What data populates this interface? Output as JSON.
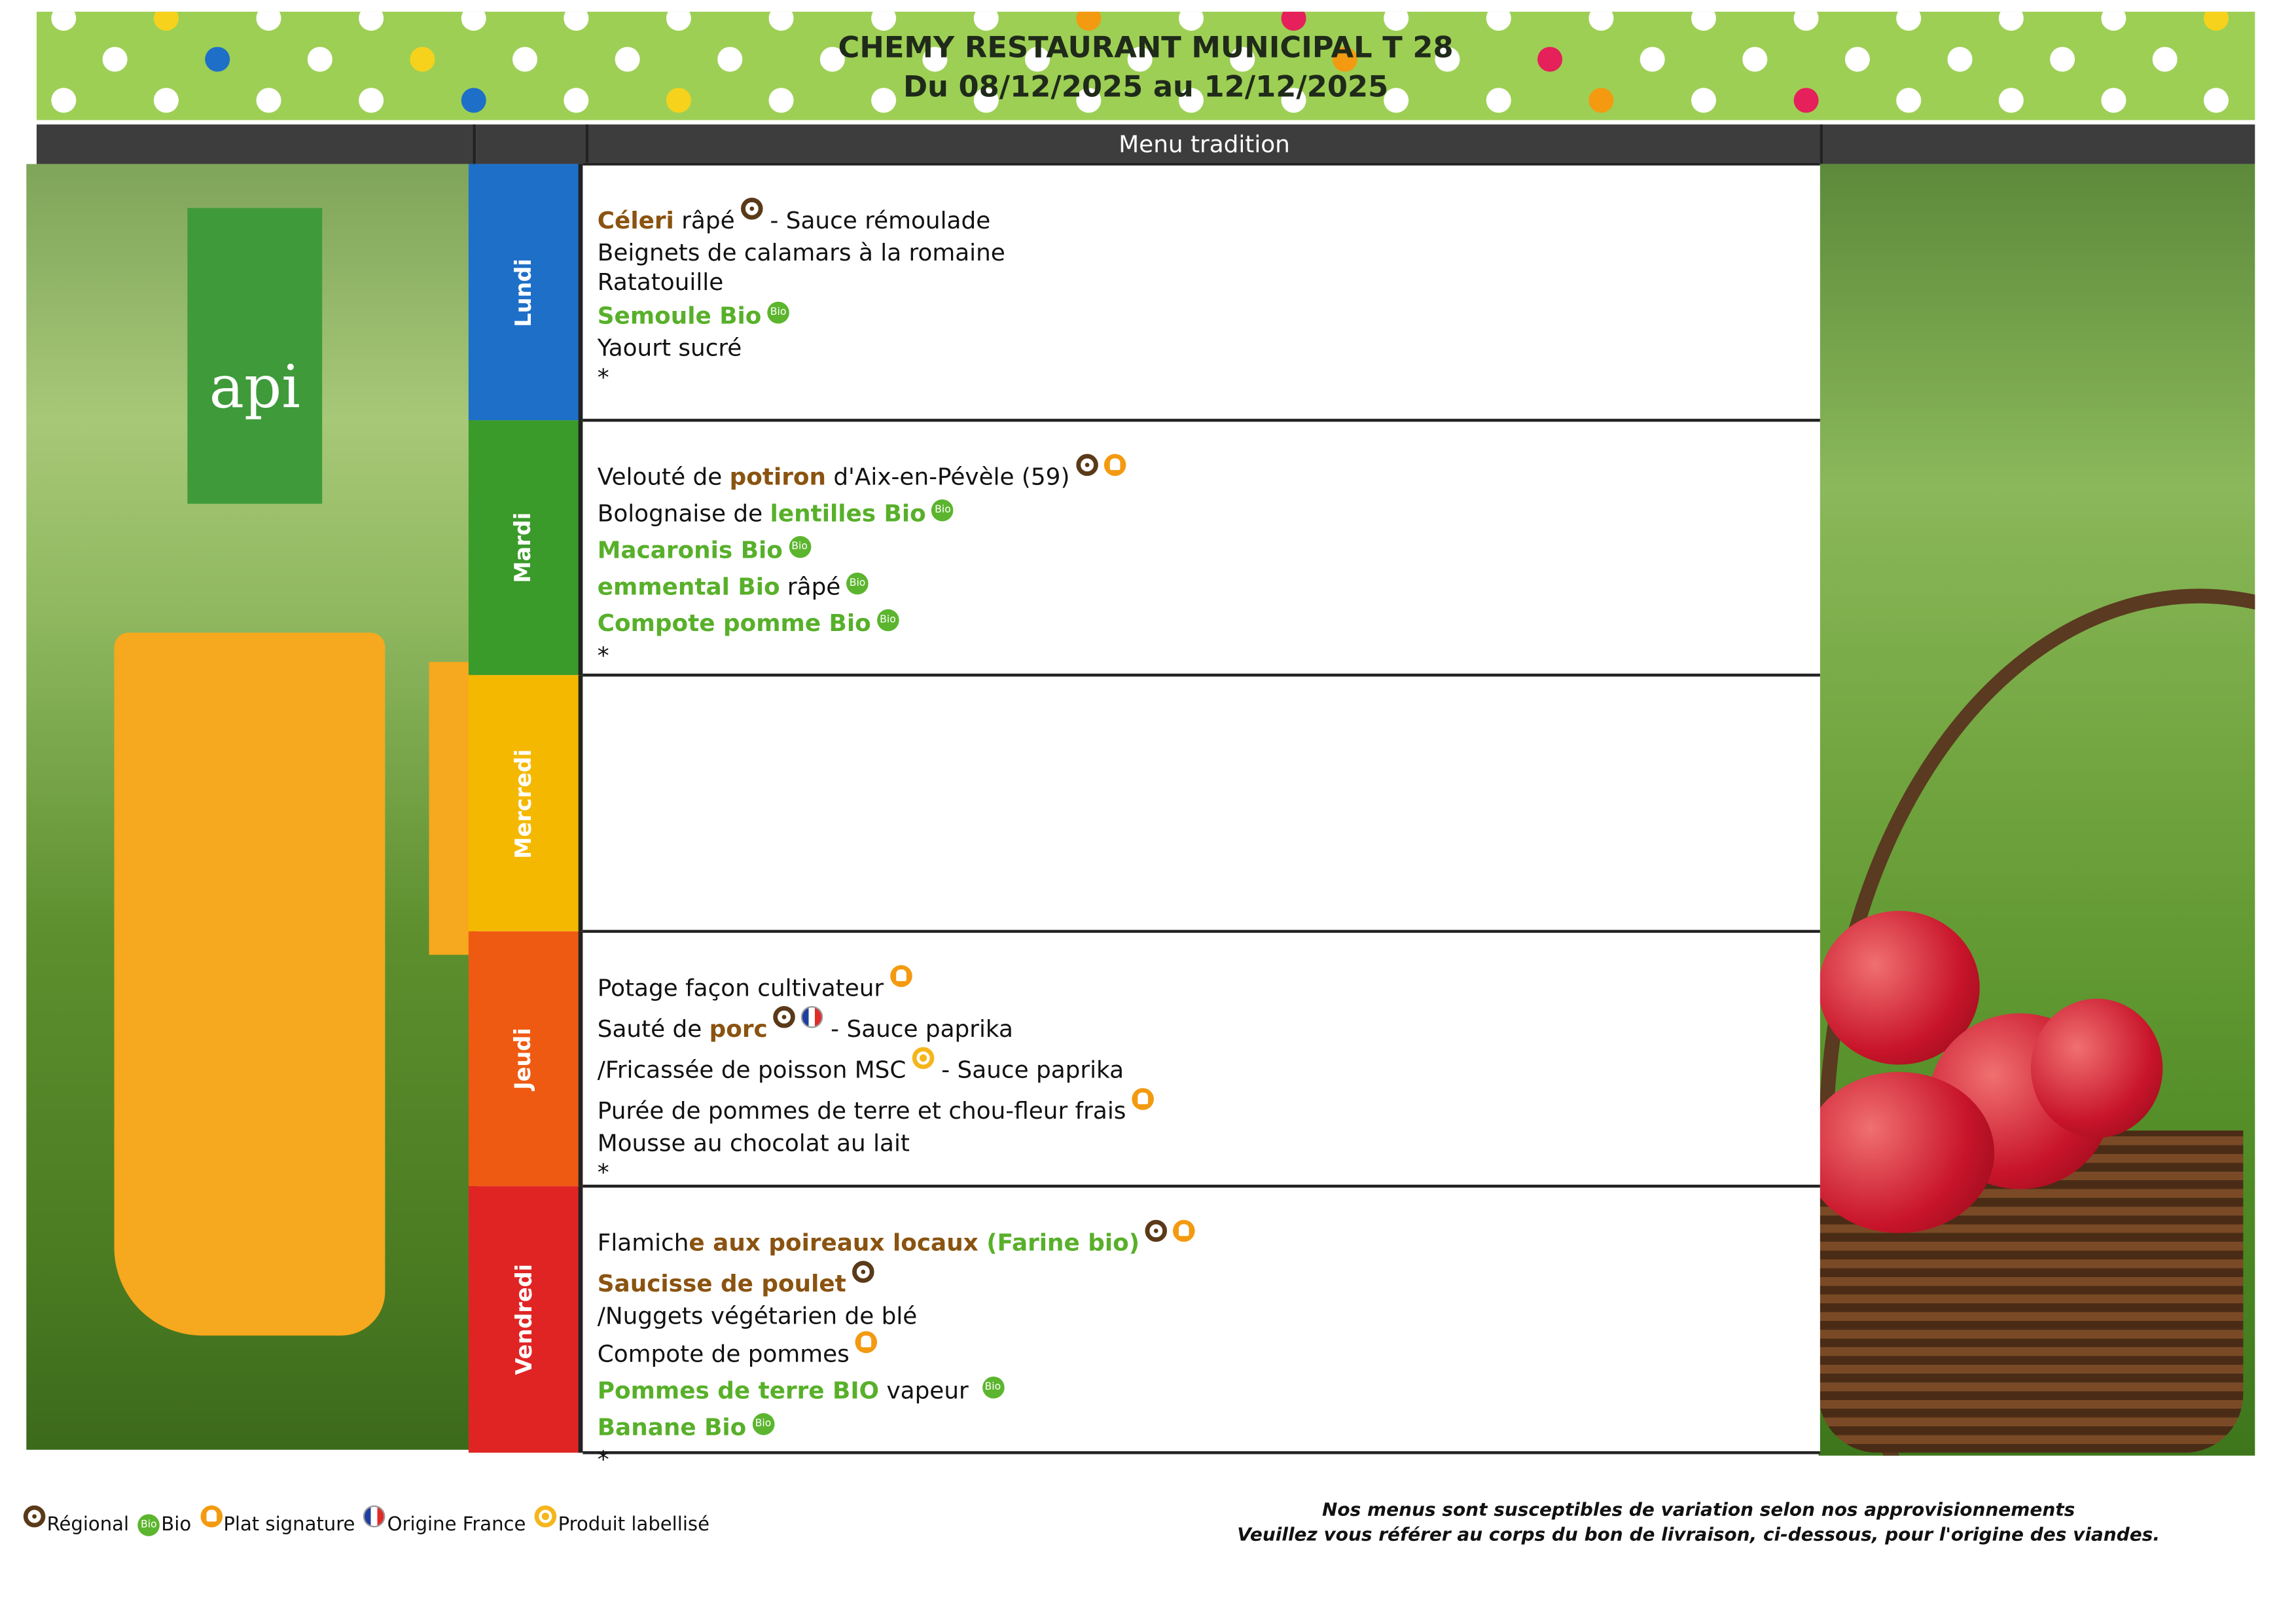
{
  "header": {
    "title": "CHEMY RESTAURANT MUNICIPAL T 28",
    "date_range": "Du 08/12/2025 au 12/12/2025",
    "column_label": "Menu tradition"
  },
  "logo": {
    "text": "api"
  },
  "colors": {
    "lundi": "#1e6fc8",
    "mardi": "#3a9a2a",
    "mercredi": "#f5b800",
    "jeudi": "#ef5a12",
    "vendredi": "#e02424",
    "header_band": "#9dcf55",
    "regional": "#5a3a18",
    "bio": "#5cb52e",
    "signature": "#f39a10"
  },
  "days": [
    {
      "name": "Lundi",
      "items": [
        {
          "segments": [
            {
              "text": "Céleri",
              "style": "brown"
            },
            {
              "text": " râpé",
              "style": "plain"
            }
          ],
          "icons": [
            "regional-icon"
          ],
          "after": [
            {
              "text": " - Sauce rémoulade",
              "style": "plain"
            }
          ]
        },
        {
          "segments": [
            {
              "text": "Beignets de calamars à la romaine",
              "style": "plain"
            }
          ],
          "icons": [],
          "tight": true
        },
        {
          "segments": [
            {
              "text": "Ratatouille",
              "style": "plain"
            }
          ],
          "icons": [],
          "tight": true
        },
        {
          "segments": [
            {
              "text": "Semoule Bio",
              "style": "green"
            }
          ],
          "icons": [
            "bio-icon"
          ]
        },
        {
          "segments": [
            {
              "text": "Yaourt sucré",
              "style": "plain"
            }
          ],
          "icons": [],
          "tight": true
        },
        {
          "segments": [
            {
              "text": "*",
              "style": "plain"
            }
          ],
          "icons": [],
          "tight": true
        }
      ]
    },
    {
      "name": "Mardi",
      "items": [
        {
          "segments": [
            {
              "text": "Velouté de ",
              "style": "plain"
            },
            {
              "text": "potiron",
              "style": "brown"
            },
            {
              "text": " d'Aix-en-Pévèle (59)",
              "style": "plain"
            }
          ],
          "icons": [
            "regional-icon",
            "signature-icon"
          ]
        },
        {
          "segments": [
            {
              "text": "Bolognaise de ",
              "style": "plain"
            },
            {
              "text": "lentilles Bio",
              "style": "green"
            }
          ],
          "icons": [
            "bio-icon"
          ]
        },
        {
          "segments": [
            {
              "text": "Macaronis Bio",
              "style": "green"
            }
          ],
          "icons": [
            "bio-icon"
          ]
        },
        {
          "segments": [
            {
              "text": "emmental Bio",
              "style": "green"
            },
            {
              "text": " râpé",
              "style": "plain"
            }
          ],
          "icons": [
            "bio-icon"
          ]
        },
        {
          "segments": [
            {
              "text": "Compote pomme Bio",
              "style": "green"
            }
          ],
          "icons": [
            "bio-icon"
          ]
        },
        {
          "segments": [
            {
              "text": "*",
              "style": "plain"
            }
          ],
          "icons": [],
          "tight": true
        }
      ]
    },
    {
      "name": "Mercredi",
      "items": []
    },
    {
      "name": "Jeudi",
      "items": [
        {
          "segments": [
            {
              "text": "Potage façon cultivateur",
              "style": "plain"
            }
          ],
          "icons": [
            "signature-icon"
          ]
        },
        {
          "segments": [
            {
              "text": "Sauté de ",
              "style": "plain"
            },
            {
              "text": "porc",
              "style": "brown"
            }
          ],
          "icons": [
            "regional-icon",
            "france-flag-icon"
          ],
          "after": [
            {
              "text": " - Sauce paprika",
              "style": "plain"
            }
          ]
        },
        {
          "segments": [
            {
              "text": "/Fricassée de poisson MSC",
              "style": "plain"
            }
          ],
          "icons": [
            "label-icon"
          ],
          "after": [
            {
              "text": " - Sauce paprika",
              "style": "plain"
            }
          ]
        },
        {
          "segments": [
            {
              "text": "Purée de pommes de terre et chou-fleur frais",
              "style": "plain"
            }
          ],
          "icons": [
            "signature-icon"
          ]
        },
        {
          "segments": [
            {
              "text": "Mousse au chocolat au lait",
              "style": "plain"
            }
          ],
          "icons": [],
          "tight": true
        },
        {
          "segments": [
            {
              "text": "*",
              "style": "plain"
            }
          ],
          "icons": [],
          "tight": true
        }
      ]
    },
    {
      "name": "Vendredi",
      "items": [
        {
          "segments": [
            {
              "text": "Flamich",
              "style": "plain"
            },
            {
              "text": "e aux poireaux locaux",
              "style": "brown"
            },
            {
              "text": " (Farine bio)",
              "style": "green"
            }
          ],
          "icons": [
            "regional-icon",
            "signature-icon"
          ]
        },
        {
          "segments": [
            {
              "text": "Saucisse de poulet",
              "style": "brown"
            }
          ],
          "icons": [
            "regional-icon"
          ]
        },
        {
          "segments": [
            {
              "text": "/Nuggets végétarien de blé",
              "style": "plain"
            }
          ],
          "icons": [],
          "tight": true
        },
        {
          "segments": [
            {
              "text": "Compote de pommes",
              "style": "plain"
            }
          ],
          "icons": [
            "signature-icon"
          ]
        },
        {
          "segments": [
            {
              "text": "Pommes de terre BIO",
              "style": "green"
            },
            {
              "text": " vapeur  ",
              "style": "plain"
            }
          ],
          "icons": [
            "bio-icon"
          ]
        },
        {
          "segments": [
            {
              "text": "Banane Bio",
              "style": "green"
            }
          ],
          "icons": [
            "bio-icon"
          ]
        },
        {
          "segments": [
            {
              "text": "*",
              "style": "plain"
            }
          ],
          "icons": [],
          "tight": true
        }
      ]
    }
  ],
  "bio_badge_text": "Bio",
  "legend": [
    {
      "icon": "regional-icon",
      "label": "Régional"
    },
    {
      "icon": "bio-icon",
      "label": "Bio"
    },
    {
      "icon": "signature-icon",
      "label": "Plat signature"
    },
    {
      "icon": "france-flag-icon",
      "label": "Origine France"
    },
    {
      "icon": "label-icon",
      "label": "Produit labellisé"
    }
  ],
  "footnote": {
    "line1": "Nos menus sont susceptibles de variation selon nos approvisionnements",
    "line2": "Veuillez vous référer au corps du bon de livraison, ci-dessous, pour l'origine des viandes."
  }
}
